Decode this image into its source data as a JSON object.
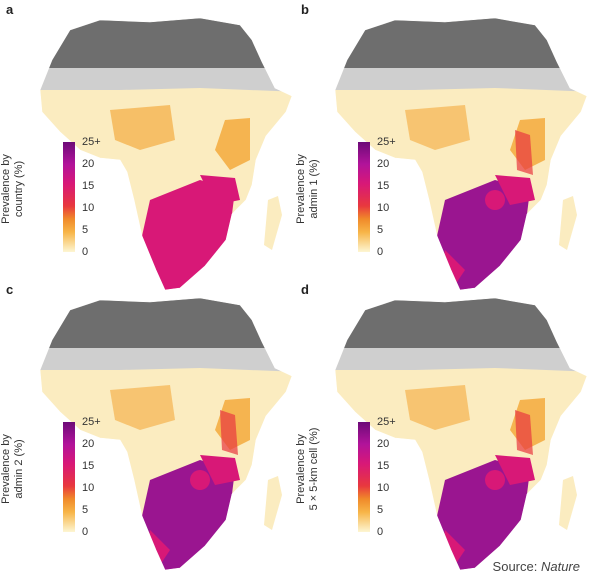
{
  "panels": [
    {
      "letter": "a",
      "legend_title_line1": "Prevalence by",
      "legend_title_line2": "country (%)",
      "level": "country"
    },
    {
      "letter": "b",
      "legend_title_line1": "Prevalence by",
      "legend_title_line2": "admin 1 (%)",
      "level": "admin1"
    },
    {
      "letter": "c",
      "legend_title_line1": "Prevalence by",
      "legend_title_line2": "admin 2 (%)",
      "level": "admin2"
    },
    {
      "letter": "d",
      "legend_title_line1": "Prevalence by",
      "legend_title_line2": "5 × 5-km cell (%)",
      "level": "cell"
    }
  ],
  "legend": {
    "ticks": [
      "25+",
      "20",
      "15",
      "10",
      "5",
      "0"
    ],
    "colors": [
      "#fdf6d3",
      "#f7b548",
      "#e8383e",
      "#d81877",
      "#b1139a",
      "#6d0b78"
    ]
  },
  "map_colors": {
    "north_africa": "#6e6e6e",
    "sahel": "#cfcfcf",
    "low": "#fbecc0",
    "mid": "#f5b450",
    "high": "#d81877",
    "very_high": "#9a1590"
  },
  "source": {
    "prefix": "Source: ",
    "name": "Nature"
  }
}
